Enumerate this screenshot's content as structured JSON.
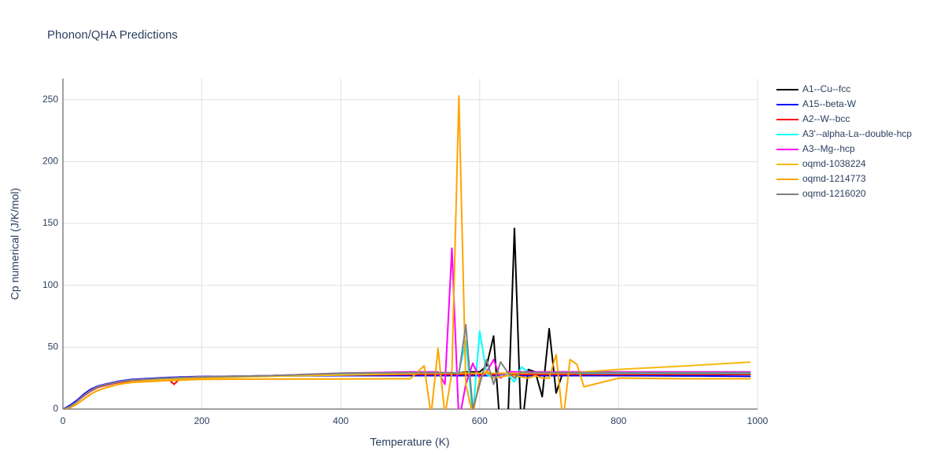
{
  "chart_data": {
    "type": "line",
    "title": "Phonon/QHA Predictions",
    "x_label": "Temperature (K)",
    "y_label": "Cp numerical (J/K/mol)",
    "x": [
      0,
      10,
      20,
      30,
      40,
      50,
      60,
      80,
      100,
      150,
      160,
      170,
      200,
      300,
      400,
      500,
      520,
      530,
      540,
      550,
      560,
      570,
      580,
      590,
      600,
      610,
      620,
      630,
      640,
      650,
      660,
      670,
      680,
      690,
      700,
      710,
      720,
      730,
      740,
      750,
      800,
      900,
      990
    ],
    "xlim": [
      0,
      1000
    ],
    "xticks": [
      0,
      200,
      400,
      600,
      800,
      1000
    ],
    "ylim": [
      0,
      267
    ],
    "yticks": [
      0,
      50,
      100,
      150,
      200,
      250
    ],
    "grid": true,
    "legend": "right",
    "series": [
      {
        "name": "A1--Cu--fcc",
        "color": "#000000",
        "values": [
          0,
          2,
          6,
          11,
          15,
          18,
          19.5,
          22,
          23.5,
          25,
          25.2,
          25.4,
          26,
          27,
          28.5,
          29,
          29,
          29,
          29,
          29,
          29,
          29,
          30,
          30,
          30,
          35,
          59,
          -20,
          -20,
          146,
          -20,
          32,
          30,
          10,
          65,
          13,
          30,
          29,
          29,
          29,
          29,
          29,
          29
        ]
      },
      {
        "name": "A15--beta-W",
        "color": "#0000ff",
        "values": [
          0,
          3,
          7,
          12,
          16,
          18.5,
          20,
          22.5,
          24,
          25.5,
          25.7,
          25.9,
          26.3,
          26.8,
          27,
          27,
          27,
          27,
          27,
          27,
          27,
          27,
          27,
          27,
          27,
          27,
          27,
          27,
          27,
          27,
          27,
          27,
          27,
          27,
          27,
          27,
          27,
          27,
          27,
          27,
          27,
          26.8,
          26.5
        ]
      },
      {
        "name": "A2--W--bcc",
        "color": "#ff0000",
        "values": [
          0,
          2,
          6,
          10.5,
          14.5,
          17.5,
          19,
          21.5,
          23,
          25,
          20,
          25.5,
          26,
          27,
          27.5,
          28,
          28,
          28,
          28,
          28,
          28,
          28,
          28,
          28,
          28,
          28,
          28,
          28,
          28,
          28,
          28,
          28,
          28,
          28,
          28,
          28,
          28,
          28,
          28,
          28,
          28,
          28,
          28
        ]
      },
      {
        "name": "A3'--alpha-La--double-hcp",
        "color": "#00ffff",
        "values": [
          0,
          2,
          6,
          11,
          15,
          18,
          19.5,
          22,
          23.5,
          25,
          25.2,
          25.4,
          26,
          27,
          28,
          29,
          29,
          29,
          29,
          29,
          29,
          30,
          55,
          -5,
          63,
          28,
          25,
          27,
          28,
          22,
          34,
          30,
          29,
          29,
          29,
          29,
          29,
          29,
          29,
          29,
          29,
          29,
          29
        ]
      },
      {
        "name": "A3--Mg--hcp",
        "color": "#ff00ff",
        "values": [
          0,
          2,
          6,
          11,
          15,
          18,
          19.5,
          22,
          23.5,
          25,
          25.2,
          25.4,
          26,
          27,
          29,
          30,
          30,
          30,
          30,
          20,
          130,
          -10,
          20,
          37,
          25,
          30,
          40,
          25,
          30,
          30,
          30,
          30,
          30,
          30,
          30,
          30,
          30,
          30,
          30,
          30,
          30,
          30,
          30
        ]
      },
      {
        "name": "oqmd-1038224",
        "color": "#f5b90f",
        "values": [
          0,
          1,
          4,
          8,
          12,
          15,
          17,
          20,
          22,
          24,
          24.2,
          24.4,
          25,
          26.5,
          27.5,
          28.5,
          29,
          29,
          29,
          29,
          29,
          29,
          29,
          29,
          29,
          29,
          29,
          29,
          29,
          29,
          29,
          29,
          29,
          29,
          29,
          29,
          29,
          29,
          29.5,
          30,
          32,
          35,
          38
        ]
      },
      {
        "name": "oqmd-1214773",
        "color": "#ffa500",
        "values": [
          0,
          1,
          4,
          8,
          12,
          15,
          17,
          20,
          21.5,
          23,
          23.2,
          23.4,
          24,
          24.2,
          24.3,
          24.5,
          35,
          -5,
          49,
          -5,
          30,
          253,
          20,
          -5,
          25,
          31,
          25,
          26,
          27,
          27,
          26,
          25,
          27,
          25,
          25,
          44,
          -10,
          40,
          36,
          18,
          25,
          24.5,
          24.5
        ]
      },
      {
        "name": "oqmd-1216020",
        "color": "#808080",
        "values": [
          0,
          2,
          6,
          11,
          15,
          18,
          19.5,
          22,
          23.5,
          25,
          25.2,
          25.4,
          26,
          27,
          29,
          29.5,
          29.5,
          29.5,
          29.5,
          29.5,
          29.5,
          28,
          68,
          0,
          20,
          40,
          20,
          38,
          30,
          25,
          30,
          29.5,
          29.5,
          29.5,
          29.5,
          29.5,
          29.5,
          29.5,
          29.5,
          29.5,
          29.5,
          29.5,
          29.5
        ]
      }
    ]
  }
}
